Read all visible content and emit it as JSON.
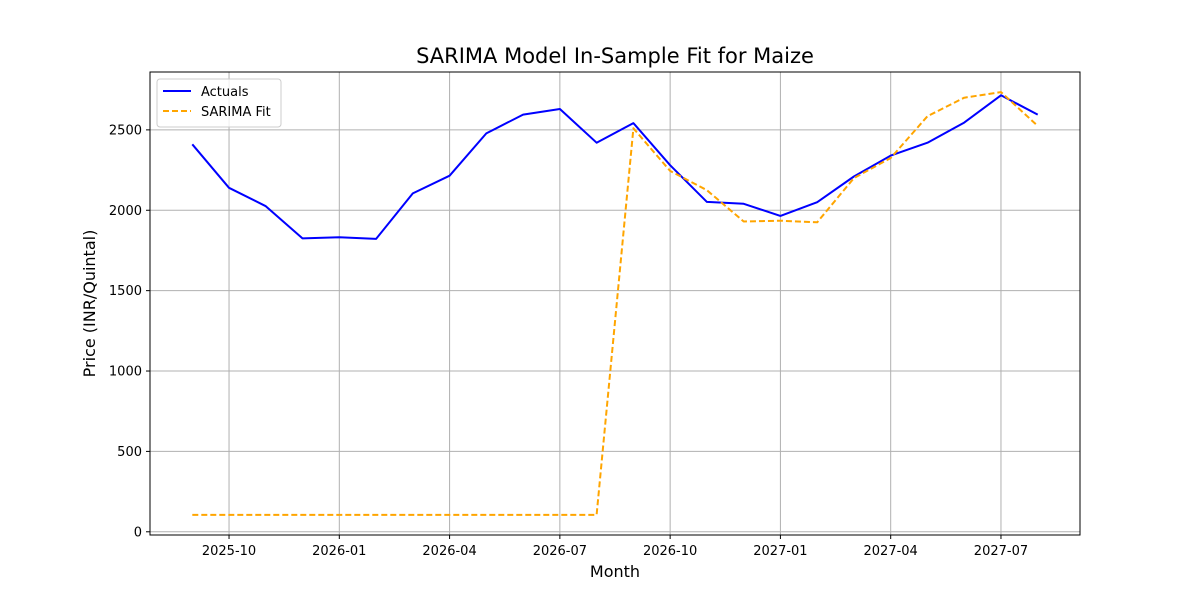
{
  "chart_data": {
    "type": "line",
    "title": "SARIMA Model In-Sample Fit for Maize",
    "xlabel": "Month",
    "ylabel": "Price (INR/Quintal)",
    "x": [
      "2025-09",
      "2025-10",
      "2025-11",
      "2025-12",
      "2026-01",
      "2026-02",
      "2026-03",
      "2026-04",
      "2026-05",
      "2026-06",
      "2026-07",
      "2026-08",
      "2026-09",
      "2026-10",
      "2026-11",
      "2026-12",
      "2027-01",
      "2027-02",
      "2027-03",
      "2027-04",
      "2027-05",
      "2027-06",
      "2027-07",
      "2027-08"
    ],
    "x_ticks": [
      "2025-10",
      "2026-01",
      "2026-04",
      "2026-07",
      "2026-10",
      "2027-01",
      "2027-04",
      "2027-07"
    ],
    "y_ticks": [
      0,
      500,
      1000,
      1500,
      2000,
      2500
    ],
    "ylim": [
      -20,
      2860
    ],
    "grid": true,
    "legend_position": "top-left",
    "series": [
      {
        "name": "Actuals",
        "color": "#0000ff",
        "style": "solid",
        "values": [
          2410,
          2140,
          2025,
          1825,
          1832,
          1822,
          2105,
          2215,
          2478,
          2595,
          2630,
          2420,
          2542,
          2280,
          2052,
          2040,
          1965,
          2050,
          2210,
          2340,
          2420,
          2545,
          2715,
          2595
        ]
      },
      {
        "name": "SARIMA Fit",
        "color": "#ffa500",
        "style": "dashed",
        "values": [
          105,
          105,
          105,
          105,
          105,
          105,
          105,
          105,
          105,
          105,
          105,
          105,
          2510,
          2245,
          2125,
          1930,
          1935,
          1925,
          2200,
          2325,
          2585,
          2700,
          2735,
          2525
        ]
      }
    ]
  }
}
